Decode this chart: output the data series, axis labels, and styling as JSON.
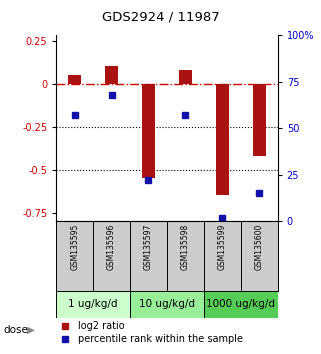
{
  "title": "GDS2924 / 11987",
  "samples": [
    "GSM135595",
    "GSM135596",
    "GSM135597",
    "GSM135598",
    "GSM135599",
    "GSM135600"
  ],
  "log2_ratio": [
    0.05,
    0.1,
    -0.55,
    0.08,
    -0.65,
    -0.42
  ],
  "percentile_rank": [
    57,
    68,
    22,
    57,
    2,
    15
  ],
  "dose_groups": [
    {
      "label": "1 ug/kg/d",
      "samples": [
        0,
        1
      ],
      "color": "#ccffcc"
    },
    {
      "label": "10 ug/kg/d",
      "samples": [
        2,
        3
      ],
      "color": "#99ee99"
    },
    {
      "label": "1000 ug/kg/d",
      "samples": [
        4,
        5
      ],
      "color": "#55cc55"
    }
  ],
  "ylim_left": [
    -0.8,
    0.28
  ],
  "ylim_right": [
    0,
    100
  ],
  "bar_color": "#aa1111",
  "dot_color": "#1111aa",
  "hline_color": "#cc0000",
  "hline_style": "-.",
  "dotline_style": ":",
  "dotline_color": "#000000",
  "bg_color": "#ffffff",
  "plot_bg": "#ffffff",
  "tick_label_color_left": "#cc0000",
  "tick_label_color_right": "#0000cc",
  "bar_width": 0.35,
  "legend_red_label": "log2 ratio",
  "legend_blue_label": "percentile rank within the sample",
  "dose_label": "dose",
  "arrow": "▶",
  "left_ticks": [
    0.25,
    0,
    -0.25,
    -0.5,
    -0.75
  ],
  "right_ticks": [
    100,
    75,
    50,
    25,
    0
  ],
  "sample_bg": "#cccccc"
}
